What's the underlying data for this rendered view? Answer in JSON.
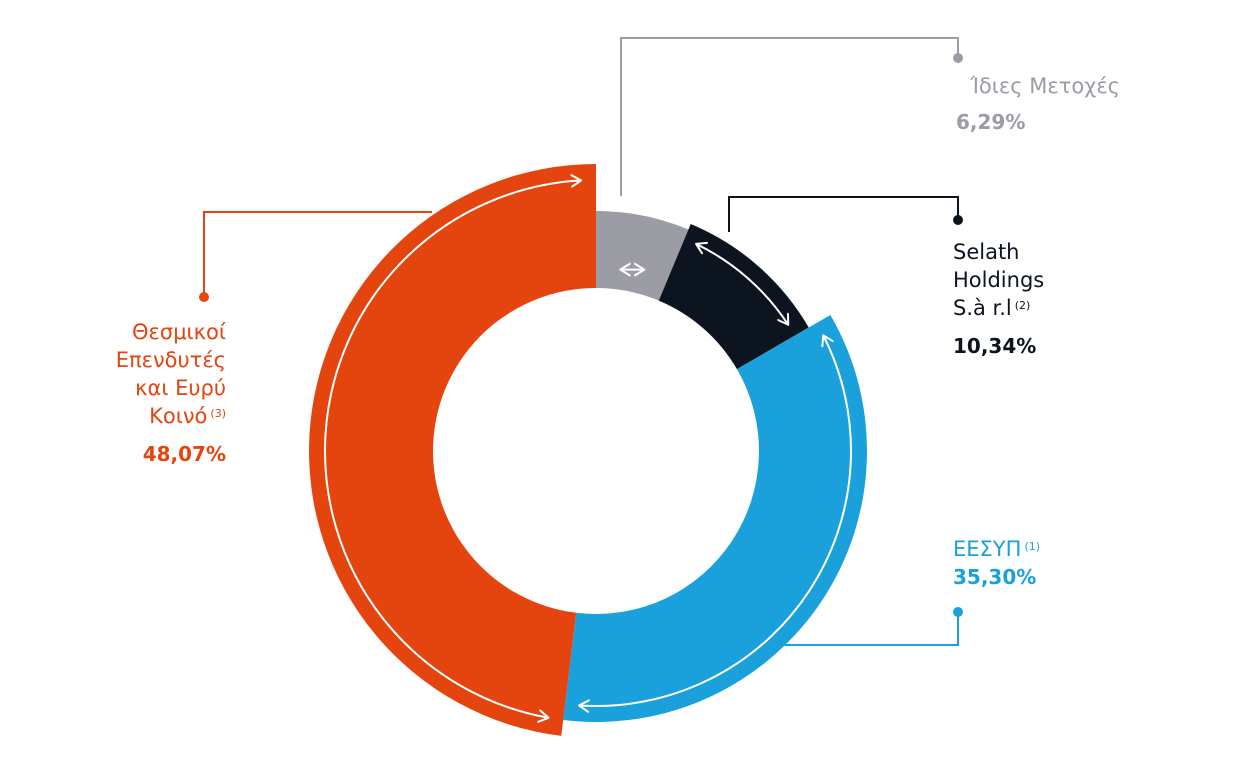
{
  "chart_data": {
    "type": "pie",
    "style": "donut",
    "start": "top",
    "direction": "clockwise",
    "slices": [
      {
        "label": "Ίδιες Μετοχές",
        "note": "",
        "value": 6.29,
        "value_text": "6,29%",
        "color": "#9b9ca4"
      },
      {
        "label": "Selath Holdings S.à r.l",
        "note": "(2)",
        "value": 10.34,
        "value_text": "10,34%",
        "color": "#0c1420"
      },
      {
        "label": "ΕΕΣΥΠ",
        "note": "(1)",
        "value": 35.3,
        "value_text": "35,30%",
        "color": "#1aa1dc"
      },
      {
        "label": "Θεσμικοί Επενδυτές και Ευρύ Κοινό",
        "note": "(3)",
        "value": 48.07,
        "value_text": "48,07%",
        "color": "#e4450f"
      }
    ]
  },
  "labels": {
    "own_shares": {
      "name": "Ίδιες Μετοχές",
      "pct": "6,29%"
    },
    "selath": {
      "line1": "Selath",
      "line2": "Holdings",
      "line3": "S.à r.l",
      "note": "(2)",
      "pct": "10,34%"
    },
    "eesyp": {
      "name": "ΕΕΣΥΠ",
      "note": "(1)",
      "pct": "35,30%"
    },
    "institutional": {
      "line1": "Θεσμικοί",
      "line2": "Επενδυτές",
      "line3": "και Ευρύ",
      "line4": "Κοινό",
      "note": "(3)",
      "pct": "48,07%"
    }
  }
}
